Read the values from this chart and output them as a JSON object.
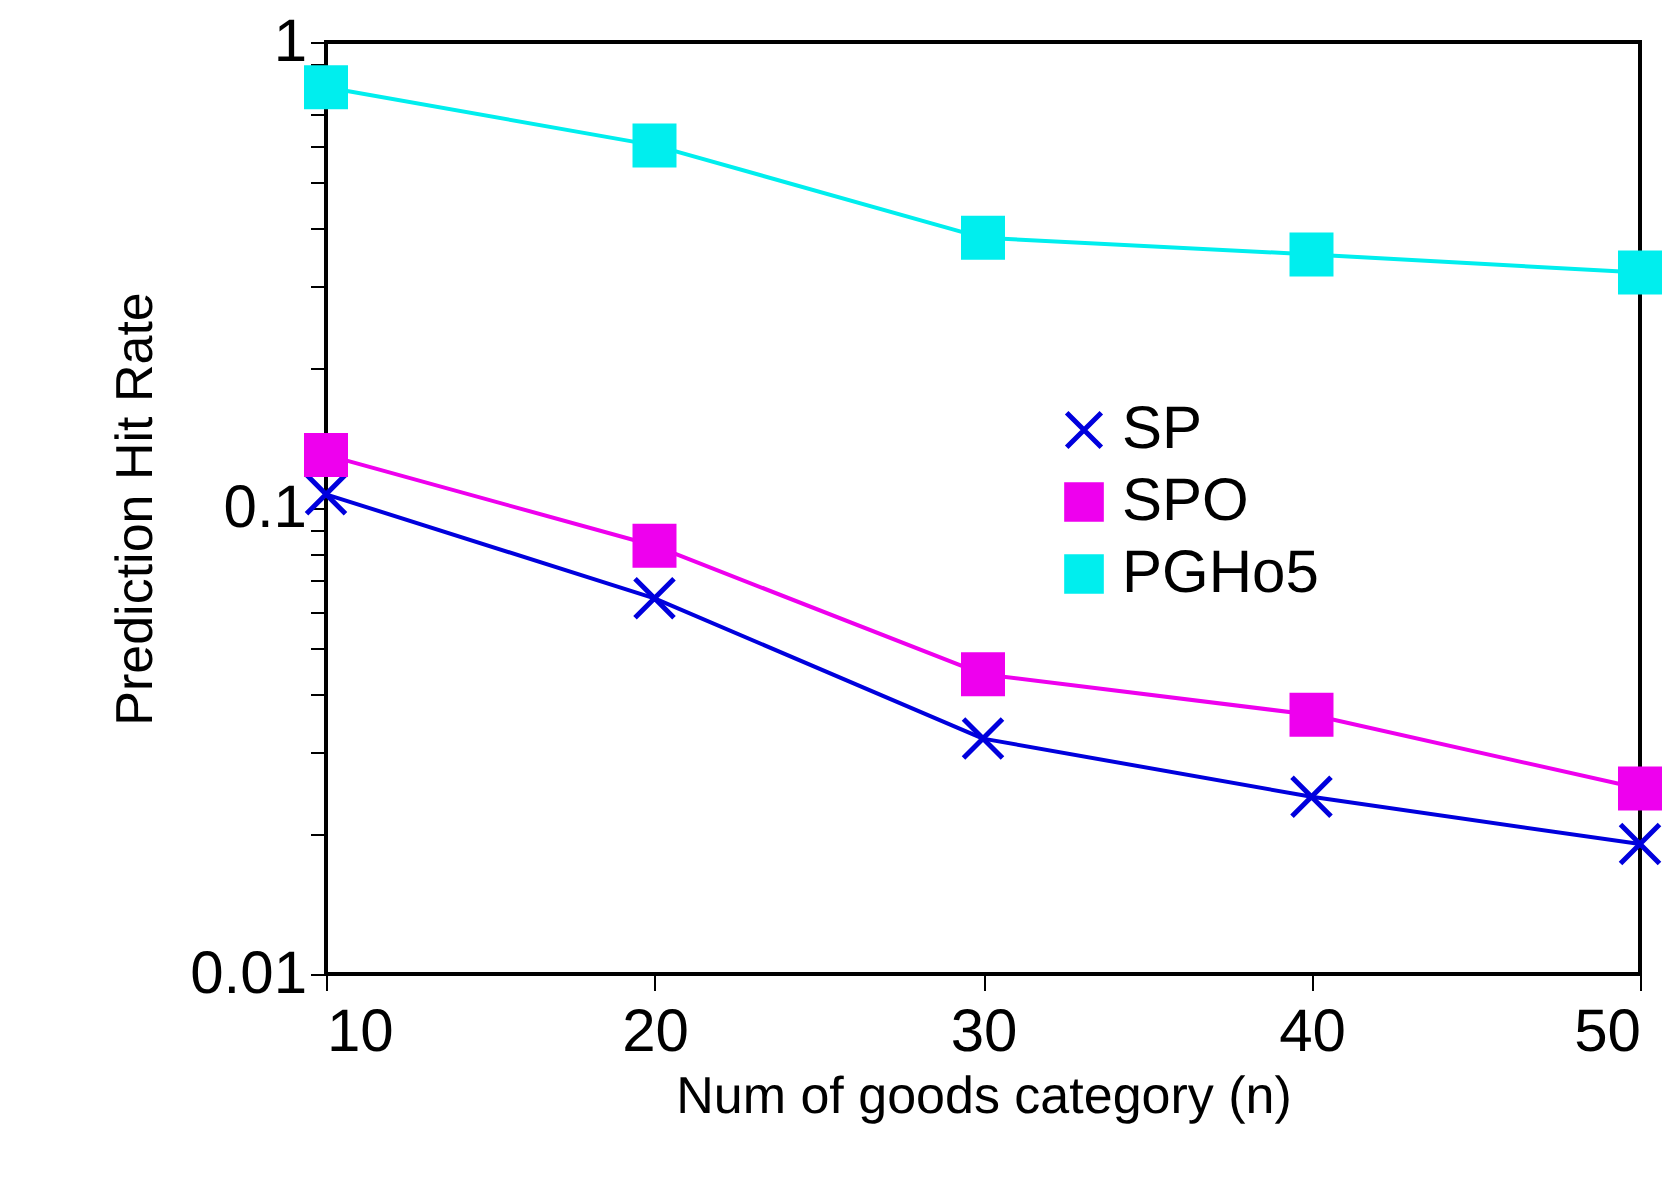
{
  "chart_data": {
    "type": "line",
    "xlabel": "Num of goods category (n)",
    "ylabel": "Prediction Hit Rate",
    "x": [
      10,
      20,
      30,
      40,
      50
    ],
    "series": [
      {
        "name": "SP",
        "color": "#0000dd",
        "marker": "cross",
        "values": [
          0.107,
          0.064,
          0.032,
          0.024,
          0.019
        ]
      },
      {
        "name": "SPO",
        "color": "#ee00ee",
        "marker": "square",
        "values": [
          0.13,
          0.083,
          0.044,
          0.036,
          0.025
        ]
      },
      {
        "name": "PGHo5",
        "color": "#00eeee",
        "marker": "square",
        "values": [
          0.8,
          0.6,
          0.38,
          0.35,
          0.32
        ]
      }
    ],
    "log": "y",
    "xlim": [
      10,
      50
    ],
    "xticks": [
      10,
      20,
      30,
      40,
      50
    ],
    "ylim": [
      0.01,
      1
    ],
    "yticks": [
      0.01,
      {
        "value": 0.02,
        "label": null
      },
      {
        "value": 0.03,
        "label": null
      },
      {
        "value": 0.04,
        "label": null
      },
      {
        "value": 0.05,
        "label": null
      },
      {
        "value": 0.06,
        "label": null
      },
      {
        "value": 0.07,
        "label": null
      },
      {
        "value": 0.08,
        "label": null
      },
      {
        "value": 0.09,
        "label": null
      },
      0.1,
      {
        "value": 0.2,
        "label": null
      },
      {
        "value": 0.3,
        "label": null
      },
      {
        "value": 0.4,
        "label": null
      },
      {
        "value": 0.5,
        "label": null
      },
      {
        "value": 0.6,
        "label": null
      },
      {
        "value": 0.7,
        "label": null
      },
      {
        "value": 0.8,
        "label": null
      },
      {
        "value": 0.9,
        "label": null
      },
      1
    ],
    "grid": false,
    "legend": "right",
    "line_style": "solid"
  }
}
